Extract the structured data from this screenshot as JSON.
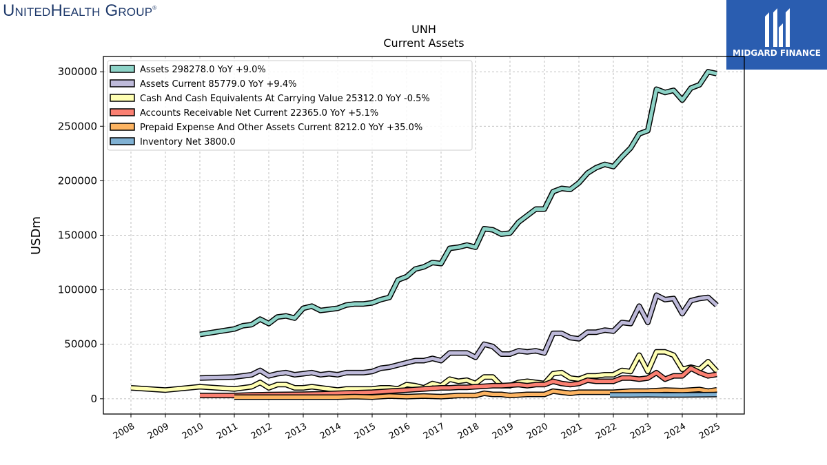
{
  "brand": {
    "logo_text": "UnitedHealth Group",
    "badge_text": "MIDGARD FINANCE"
  },
  "chart_data": {
    "type": "line",
    "title": "UNH",
    "subtitle": "Current  Assets",
    "ylabel": "USDm",
    "xlabel": "",
    "ylim": [
      -14000,
      314000
    ],
    "xlim": [
      2007.2,
      2025.8
    ],
    "yticks": [
      0,
      50000,
      100000,
      150000,
      200000,
      250000,
      300000
    ],
    "xticks": [
      2008,
      2009,
      2010,
      2011,
      2012,
      2013,
      2014,
      2015,
      2016,
      2017,
      2018,
      2019,
      2020,
      2021,
      2022,
      2023,
      2024,
      2025
    ],
    "grid": true,
    "legend_position": "top-left",
    "series": [
      {
        "name": "Assets",
        "legend": "Assets  298278.0 YoY +9.0%",
        "color": "#8dd3c7",
        "points": [
          [
            2010,
            59000
          ],
          [
            2011,
            64000
          ],
          [
            2011.25,
            67000
          ],
          [
            2011.5,
            68000
          ],
          [
            2011.75,
            73000
          ],
          [
            2012,
            69000
          ],
          [
            2012.25,
            75000
          ],
          [
            2012.5,
            76000
          ],
          [
            2012.75,
            74000
          ],
          [
            2013,
            83000
          ],
          [
            2013.25,
            85000
          ],
          [
            2013.5,
            81000
          ],
          [
            2013.75,
            82000
          ],
          [
            2014,
            83000
          ],
          [
            2014.25,
            86000
          ],
          [
            2014.5,
            87000
          ],
          [
            2014.75,
            87000
          ],
          [
            2015,
            88000
          ],
          [
            2015.25,
            91000
          ],
          [
            2015.5,
            93000
          ],
          [
            2015.75,
            109000
          ],
          [
            2016,
            112000
          ],
          [
            2016.25,
            119000
          ],
          [
            2016.5,
            121000
          ],
          [
            2016.75,
            125000
          ],
          [
            2017,
            124000
          ],
          [
            2017.25,
            138000
          ],
          [
            2017.5,
            139000
          ],
          [
            2017.75,
            141000
          ],
          [
            2018,
            139000
          ],
          [
            2018.25,
            156000
          ],
          [
            2018.5,
            155000
          ],
          [
            2018.75,
            151000
          ],
          [
            2019,
            152000
          ],
          [
            2019.25,
            162000
          ],
          [
            2019.5,
            168000
          ],
          [
            2019.75,
            174000
          ],
          [
            2020,
            174000
          ],
          [
            2020.25,
            190000
          ],
          [
            2020.5,
            193000
          ],
          [
            2020.75,
            192000
          ],
          [
            2021,
            198000
          ],
          [
            2021.25,
            207000
          ],
          [
            2021.5,
            212000
          ],
          [
            2021.75,
            215000
          ],
          [
            2022,
            213000
          ],
          [
            2022.25,
            222000
          ],
          [
            2022.5,
            230000
          ],
          [
            2022.75,
            243000
          ],
          [
            2023,
            246000
          ],
          [
            2023.25,
            284000
          ],
          [
            2023.5,
            281000
          ],
          [
            2023.75,
            283000
          ],
          [
            2024,
            274000
          ],
          [
            2024.25,
            285000
          ],
          [
            2024.5,
            288000
          ],
          [
            2024.75,
            300000
          ],
          [
            2025,
            298278
          ]
        ]
      },
      {
        "name": "Assets Current",
        "legend": "Assets Current  85779.0 YoY +9.4%",
        "color": "#bebada",
        "points": [
          [
            2010,
            19000
          ],
          [
            2011,
            20000
          ],
          [
            2011.25,
            21000
          ],
          [
            2011.5,
            22000
          ],
          [
            2011.75,
            26000
          ],
          [
            2012,
            21000
          ],
          [
            2012.25,
            23000
          ],
          [
            2012.5,
            24000
          ],
          [
            2012.75,
            22000
          ],
          [
            2013,
            23000
          ],
          [
            2013.25,
            24000
          ],
          [
            2013.5,
            22000
          ],
          [
            2013.75,
            23000
          ],
          [
            2014,
            22000
          ],
          [
            2014.25,
            24000
          ],
          [
            2014.5,
            24000
          ],
          [
            2014.75,
            24000
          ],
          [
            2015,
            25000
          ],
          [
            2015.25,
            28000
          ],
          [
            2015.5,
            29000
          ],
          [
            2015.75,
            31000
          ],
          [
            2016,
            33000
          ],
          [
            2016.25,
            35000
          ],
          [
            2016.5,
            35000
          ],
          [
            2016.75,
            37000
          ],
          [
            2017,
            35000
          ],
          [
            2017.25,
            42000
          ],
          [
            2017.5,
            42000
          ],
          [
            2017.75,
            42000
          ],
          [
            2018,
            38000
          ],
          [
            2018.25,
            50000
          ],
          [
            2018.5,
            48000
          ],
          [
            2018.75,
            41000
          ],
          [
            2019,
            41000
          ],
          [
            2019.25,
            44000
          ],
          [
            2019.5,
            43000
          ],
          [
            2019.75,
            44000
          ],
          [
            2020,
            42000
          ],
          [
            2020.25,
            60000
          ],
          [
            2020.5,
            60000
          ],
          [
            2020.75,
            56000
          ],
          [
            2021,
            55000
          ],
          [
            2021.25,
            61000
          ],
          [
            2021.5,
            61000
          ],
          [
            2021.75,
            63000
          ],
          [
            2022,
            62000
          ],
          [
            2022.25,
            70000
          ],
          [
            2022.5,
            69000
          ],
          [
            2022.75,
            85000
          ],
          [
            2023,
            70000
          ],
          [
            2023.25,
            95000
          ],
          [
            2023.5,
            91000
          ],
          [
            2023.75,
            92000
          ],
          [
            2024,
            78000
          ],
          [
            2024.25,
            90000
          ],
          [
            2024.5,
            92000
          ],
          [
            2024.75,
            93000
          ],
          [
            2025,
            85779
          ]
        ]
      },
      {
        "name": "Cash And Cash Equivalents At Carrying Value",
        "legend": "Cash And Cash Equivalents At Carrying Value  25312.0 YoY -0.5%",
        "color": "#ffffb3",
        "points": [
          [
            2008,
            10000
          ],
          [
            2009,
            8000
          ],
          [
            2010,
            11000
          ],
          [
            2011,
            9000
          ],
          [
            2011.25,
            10000
          ],
          [
            2011.5,
            11000
          ],
          [
            2011.75,
            15000
          ],
          [
            2012,
            10000
          ],
          [
            2012.25,
            13000
          ],
          [
            2012.5,
            13000
          ],
          [
            2012.75,
            10000
          ],
          [
            2013,
            10000
          ],
          [
            2013.25,
            11000
          ],
          [
            2013.5,
            10000
          ],
          [
            2013.75,
            9000
          ],
          [
            2014,
            8000
          ],
          [
            2014.25,
            9000
          ],
          [
            2014.5,
            9000
          ],
          [
            2014.75,
            9000
          ],
          [
            2015,
            9000
          ],
          [
            2015.25,
            10000
          ],
          [
            2015.5,
            10000
          ],
          [
            2015.75,
            9000
          ],
          [
            2016,
            13000
          ],
          [
            2016.25,
            12000
          ],
          [
            2016.5,
            10000
          ],
          [
            2016.75,
            14000
          ],
          [
            2017,
            12000
          ],
          [
            2017.25,
            18000
          ],
          [
            2017.5,
            16000
          ],
          [
            2017.75,
            17000
          ],
          [
            2018,
            14000
          ],
          [
            2018.25,
            20000
          ],
          [
            2018.5,
            20000
          ],
          [
            2018.75,
            12000
          ],
          [
            2019,
            12000
          ],
          [
            2019.25,
            15000
          ],
          [
            2019.5,
            16000
          ],
          [
            2019.75,
            15000
          ],
          [
            2020,
            14000
          ],
          [
            2020.25,
            23000
          ],
          [
            2020.5,
            24000
          ],
          [
            2020.75,
            19000
          ],
          [
            2021,
            18000
          ],
          [
            2021.25,
            21000
          ],
          [
            2021.5,
            21000
          ],
          [
            2021.75,
            22000
          ],
          [
            2022,
            22000
          ],
          [
            2022.25,
            26000
          ],
          [
            2022.5,
            25000
          ],
          [
            2022.75,
            40000
          ],
          [
            2023,
            25000
          ],
          [
            2023.25,
            43000
          ],
          [
            2023.5,
            43000
          ],
          [
            2023.75,
            40000
          ],
          [
            2024,
            27000
          ],
          [
            2024.25,
            29000
          ],
          [
            2024.5,
            27000
          ],
          [
            2024.75,
            34000
          ],
          [
            2025,
            25312
          ]
        ]
      },
      {
        "name": "Accounts Receivable Net Current",
        "legend": "Accounts Receivable Net Current  22365.0 YoY +5.1%",
        "color": "#fb8072",
        "points": [
          [
            2010,
            3000
          ],
          [
            2011,
            3000
          ],
          [
            2011.5,
            3500
          ],
          [
            2012,
            3800
          ],
          [
            2012.5,
            4000
          ],
          [
            2013,
            4200
          ],
          [
            2013.5,
            4500
          ],
          [
            2014,
            5000
          ],
          [
            2014.5,
            5500
          ],
          [
            2015,
            6000
          ],
          [
            2015.25,
            6500
          ],
          [
            2015.5,
            7000
          ],
          [
            2015.75,
            7500
          ],
          [
            2016,
            8000
          ],
          [
            2016.25,
            8500
          ],
          [
            2016.5,
            9000
          ],
          [
            2016.75,
            9500
          ],
          [
            2017,
            10000
          ],
          [
            2017.25,
            10000
          ],
          [
            2017.5,
            10500
          ],
          [
            2017.75,
            10500
          ],
          [
            2018,
            11000
          ],
          [
            2018.25,
            11500
          ],
          [
            2018.5,
            12000
          ],
          [
            2018.75,
            12000
          ],
          [
            2019,
            12500
          ],
          [
            2019.25,
            13000
          ],
          [
            2019.5,
            12000
          ],
          [
            2019.75,
            13000
          ],
          [
            2020,
            13000
          ],
          [
            2020.25,
            16000
          ],
          [
            2020.5,
            14000
          ],
          [
            2020.75,
            13000
          ],
          [
            2021,
            14000
          ],
          [
            2021.25,
            17000
          ],
          [
            2021.5,
            16000
          ],
          [
            2021.75,
            16000
          ],
          [
            2022,
            16000
          ],
          [
            2022.25,
            19000
          ],
          [
            2022.5,
            19000
          ],
          [
            2022.75,
            18000
          ],
          [
            2023,
            19000
          ],
          [
            2023.25,
            24000
          ],
          [
            2023.5,
            18000
          ],
          [
            2023.75,
            21000
          ],
          [
            2024,
            21000
          ],
          [
            2024.25,
            28000
          ],
          [
            2024.5,
            24000
          ],
          [
            2024.75,
            21000
          ],
          [
            2025,
            22365
          ]
        ]
      },
      {
        "name": "Prepaid Expense And Other Assets Current",
        "legend": "Prepaid Expense And Other Assets Current  8212.0 YoY +35.0%",
        "color": "#fdb462",
        "points": [
          [
            2011,
            1500
          ],
          [
            2012,
            1500
          ],
          [
            2013,
            1500
          ],
          [
            2014,
            1500
          ],
          [
            2014.5,
            2000
          ],
          [
            2015,
            1500
          ],
          [
            2015.5,
            2500
          ],
          [
            2016,
            2000
          ],
          [
            2016.5,
            2500
          ],
          [
            2017,
            2000
          ],
          [
            2017.5,
            3000
          ],
          [
            2018,
            3000
          ],
          [
            2018.25,
            5000
          ],
          [
            2018.5,
            4000
          ],
          [
            2018.75,
            4000
          ],
          [
            2019,
            3000
          ],
          [
            2019.5,
            4000
          ],
          [
            2020,
            4000
          ],
          [
            2020.25,
            7000
          ],
          [
            2020.5,
            6000
          ],
          [
            2020.75,
            5000
          ],
          [
            2021,
            6000
          ],
          [
            2021.5,
            6000
          ],
          [
            2022,
            6000
          ],
          [
            2022.5,
            7000
          ],
          [
            2023,
            7000
          ],
          [
            2023.5,
            8000
          ],
          [
            2024,
            7500
          ],
          [
            2024.5,
            8500
          ],
          [
            2024.75,
            7000
          ],
          [
            2025,
            8212
          ]
        ]
      },
      {
        "name": "Inventory Net",
        "legend": "Inventory Net  3800.0",
        "color": "#80b1d3",
        "points": [
          [
            2021.9,
            3500
          ],
          [
            2022.5,
            3600
          ],
          [
            2023,
            3700
          ],
          [
            2023.5,
            3600
          ],
          [
            2024,
            3500
          ],
          [
            2024.5,
            3700
          ],
          [
            2025,
            3800
          ]
        ]
      }
    ]
  }
}
